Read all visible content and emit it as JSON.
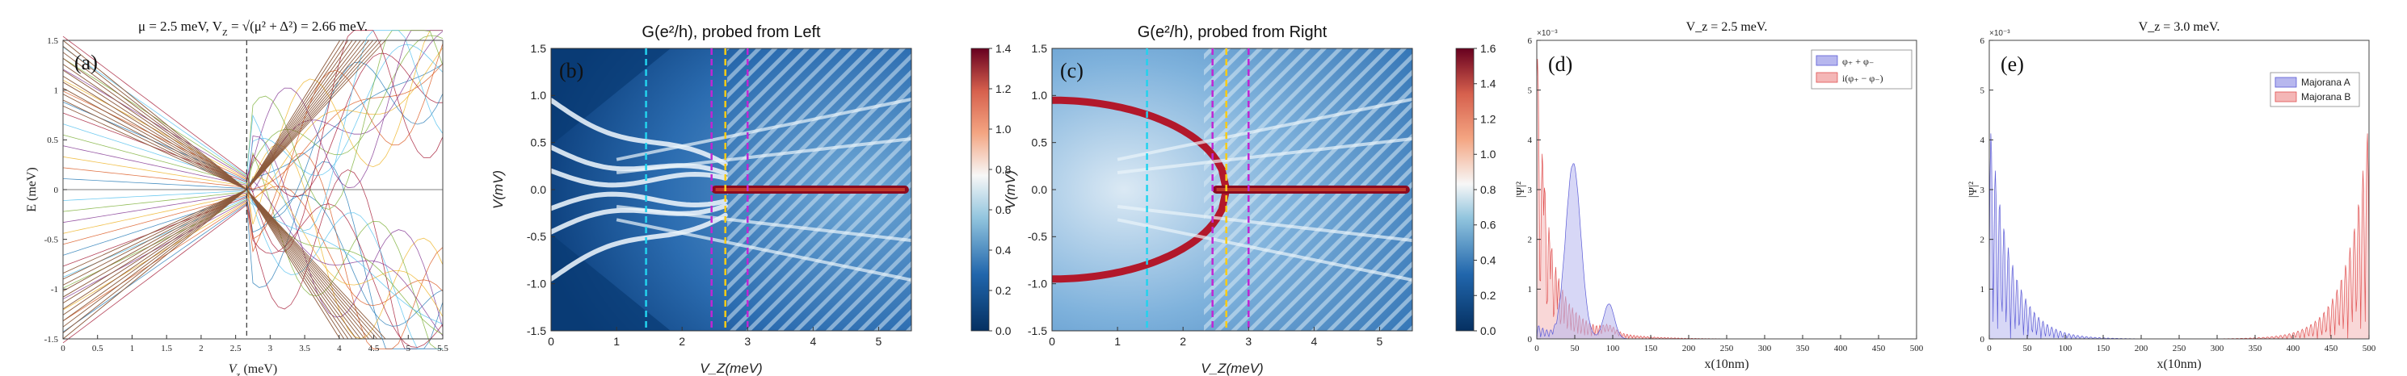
{
  "chart_data": [
    {
      "id": "a",
      "type": "line",
      "panel_label": "(a)",
      "title": "μ = 2.5 meV, V",
      "title_sub": "Z",
      "title_rest": " = √(μ² + Δ²) = 2.66 meV.",
      "xlabel": "V",
      "xlabel_sub": "z",
      "xlabel_unit": " (meV)",
      "ylabel": "E (meV)",
      "xlim": [
        0,
        5.5
      ],
      "ylim": [
        -1.5,
        1.5
      ],
      "xticks": [
        "0",
        "0.5",
        "1",
        "1.5",
        "2",
        "2.5",
        "3",
        "3.5",
        "4",
        "4.5",
        "5",
        "5.5"
      ],
      "yticks": [
        "-1.5",
        "-1",
        "-0.5",
        "0",
        "0.5",
        "1",
        "1.5"
      ],
      "dashed_line_x": 2.66,
      "series_colors": [
        "#1f77b4",
        "#d95319",
        "#edb120",
        "#7e2f8e",
        "#77ac30",
        "#4dbeee",
        "#a2142f"
      ]
    },
    {
      "id": "b",
      "type": "heatmap",
      "panel_label": "(b)",
      "title": "G(e²/h), probed from Left",
      "xlabel": "V_Z(meV)",
      "ylabel": "V(mV)",
      "xlim": [
        0,
        5.5
      ],
      "ylim": [
        -1.5,
        1.5
      ],
      "xticks": [
        "0",
        "1",
        "2",
        "3",
        "4",
        "5"
      ],
      "yticks": [
        "-1.5",
        "-1.0",
        "-0.5",
        "0.0",
        "0.5",
        "1.0",
        "1.5"
      ],
      "colorbar_ticks": [
        "0.0",
        "0.2",
        "0.4",
        "0.6",
        "0.8",
        "1.0",
        "1.2",
        "1.4"
      ],
      "colorbar_range": [
        0,
        1.4
      ],
      "vlines": [
        {
          "x": 1.45,
          "color": "#22d3ee"
        },
        {
          "x": 2.45,
          "color": "#c026d3"
        },
        {
          "x": 2.66,
          "color": "#facc15"
        },
        {
          "x": 3.0,
          "color": "#c026d3"
        }
      ]
    },
    {
      "id": "c",
      "type": "heatmap",
      "panel_label": "(c)",
      "title": "G(e²/h), probed from Right",
      "xlabel": "V_Z(meV)",
      "ylabel": "V(mV)",
      "xlim": [
        0,
        5.5
      ],
      "ylim": [
        -1.5,
        1.5
      ],
      "xticks": [
        "0",
        "1",
        "2",
        "3",
        "4",
        "5"
      ],
      "yticks": [
        "-1.5",
        "-1.0",
        "-0.5",
        "0.0",
        "0.5",
        "1.0",
        "1.5"
      ],
      "colorbar_ticks": [
        "0.0",
        "0.2",
        "0.4",
        "0.6",
        "0.8",
        "1.0",
        "1.2",
        "1.4",
        "1.6"
      ],
      "colorbar_range": [
        0,
        1.6
      ],
      "vlines": [
        {
          "x": 1.45,
          "color": "#22d3ee"
        },
        {
          "x": 2.45,
          "color": "#c026d3"
        },
        {
          "x": 2.66,
          "color": "#facc15"
        },
        {
          "x": 3.0,
          "color": "#c026d3"
        }
      ]
    },
    {
      "id": "d",
      "type": "area",
      "panel_label": "(d)",
      "title": "V_z = 2.5 meV.",
      "xlabel": "x(10nm)",
      "ylabel": "|Ψ|²",
      "y_exponent": "×10⁻³",
      "xlim": [
        0,
        500
      ],
      "ylim": [
        0,
        6
      ],
      "xticks": [
        "0",
        "50",
        "100",
        "150",
        "200",
        "250",
        "300",
        "350",
        "400",
        "450",
        "500"
      ],
      "yticks": [
        "0",
        "1",
        "2",
        "3",
        "4",
        "5",
        "6"
      ],
      "legend": [
        "φ₊ + φ₋",
        "i(φ₊ − φ₋)"
      ],
      "series_colors": [
        "#5b5bd6",
        "#e05252"
      ]
    },
    {
      "id": "e",
      "type": "area",
      "panel_label": "(e)",
      "title": "V_z = 3.0 meV.",
      "xlabel": "x(10nm)",
      "ylabel": "|Ψ|²",
      "y_exponent": "×10⁻³",
      "xlim": [
        0,
        500
      ],
      "ylim": [
        0,
        6
      ],
      "xticks": [
        "0",
        "50",
        "100",
        "150",
        "200",
        "250",
        "300",
        "350",
        "400",
        "450",
        "500"
      ],
      "yticks": [
        "0",
        "1",
        "2",
        "3",
        "4",
        "5",
        "6"
      ],
      "legend": [
        "Majorana A",
        "Majorana B"
      ],
      "series_colors": [
        "#5b5bd6",
        "#e05252"
      ]
    }
  ]
}
